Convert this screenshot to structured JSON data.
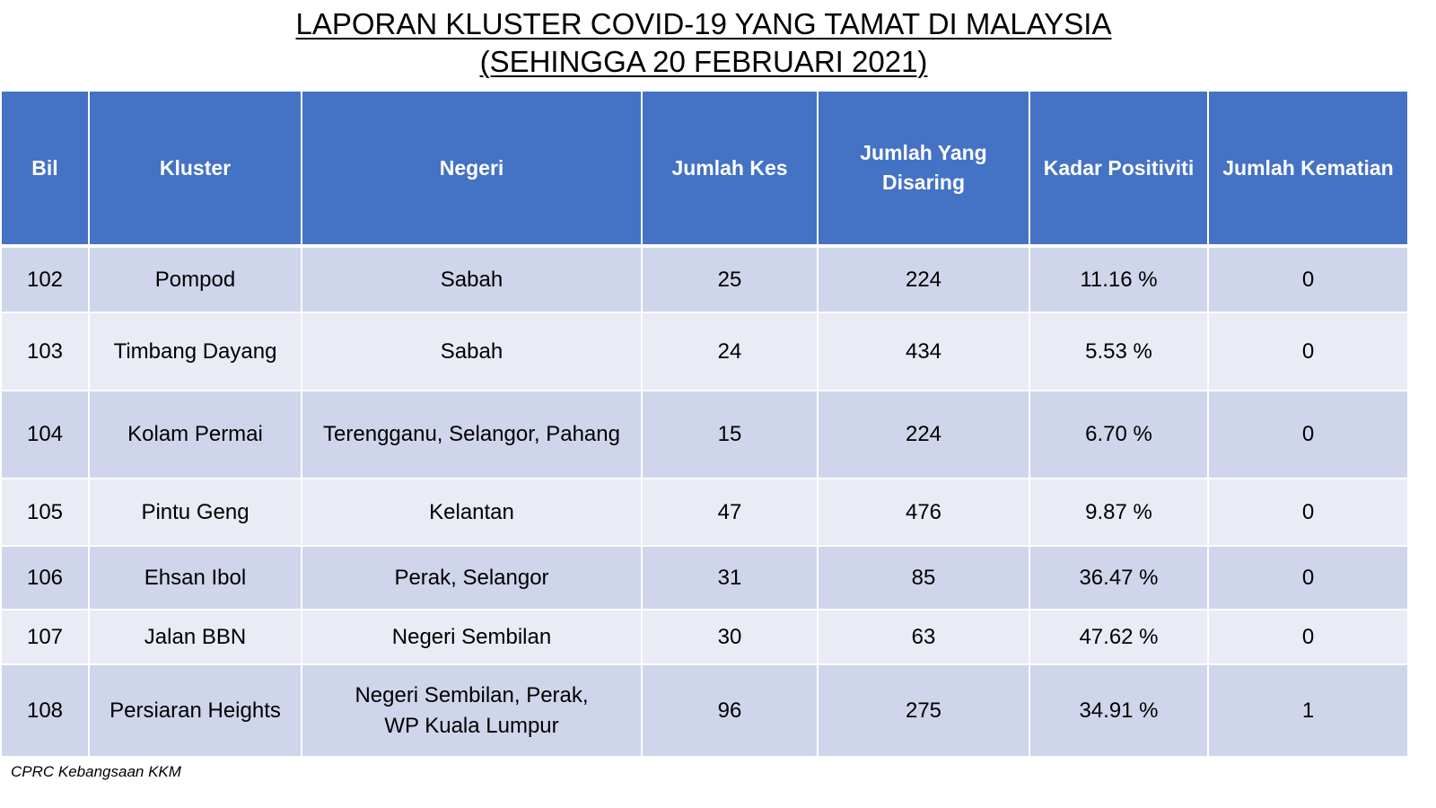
{
  "title": {
    "line1": "LAPORAN KLUSTER COVID-19 YANG TAMAT DI MALAYSIA",
    "line2": "(SEHINGGA  20 FEBRUARI 2021)"
  },
  "table": {
    "headers": {
      "bil": "Bil",
      "kluster": "Kluster",
      "negeri": "Negeri",
      "jumlah_kes": "Jumlah Kes",
      "jumlah_disaring": "Jumlah Yang Disaring",
      "kadar_positiviti": "Kadar Positiviti",
      "jumlah_kematian": "Jumlah Kematian"
    },
    "rows": [
      {
        "bil": "102",
        "kluster": "Pompod",
        "negeri": "Sabah",
        "jumlah_kes": "25",
        "jumlah_disaring": "224",
        "kadar_positiviti": "11.16 %",
        "jumlah_kematian": "0"
      },
      {
        "bil": "103",
        "kluster": "Timbang Dayang",
        "negeri": "Sabah",
        "jumlah_kes": "24",
        "jumlah_disaring": "434",
        "kadar_positiviti": "5.53 %",
        "jumlah_kematian": "0"
      },
      {
        "bil": "104",
        "kluster": "Kolam Permai",
        "negeri": "Terengganu, Selangor, Pahang",
        "jumlah_kes": "15",
        "jumlah_disaring": "224",
        "kadar_positiviti": "6.70 %",
        "jumlah_kematian": "0"
      },
      {
        "bil": "105",
        "kluster": "Pintu Geng",
        "negeri": "Kelantan",
        "jumlah_kes": "47",
        "jumlah_disaring": "476",
        "kadar_positiviti": "9.87 %",
        "jumlah_kematian": "0"
      },
      {
        "bil": "106",
        "kluster": "Ehsan Ibol",
        "negeri": "Perak, Selangor",
        "jumlah_kes": "31",
        "jumlah_disaring": "85",
        "kadar_positiviti": "36.47 %",
        "jumlah_kematian": "0"
      },
      {
        "bil": "107",
        "kluster": "Jalan BBN",
        "negeri": "Negeri Sembilan",
        "jumlah_kes": "30",
        "jumlah_disaring": "63",
        "kadar_positiviti": "47.62 %",
        "jumlah_kematian": "0"
      },
      {
        "bil": "108",
        "kluster": "Persiaran Heights",
        "negeri": "Negeri Sembilan, Perak,\nWP Kuala Lumpur",
        "jumlah_kes": "96",
        "jumlah_disaring": "275",
        "kadar_positiviti": "34.91 %",
        "jumlah_kematian": "1"
      }
    ]
  },
  "footer": {
    "source": "CPRC Kebangsaan KKM"
  },
  "colors": {
    "header_bg": "#4472c4",
    "row_odd": "#cfd5ea",
    "row_even": "#e9ebf5"
  }
}
